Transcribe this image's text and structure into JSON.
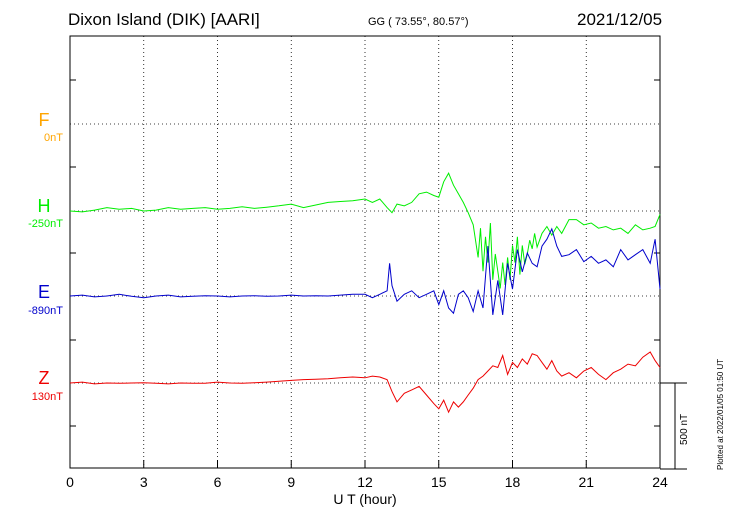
{
  "header": {
    "station": "Dixon Island (DIK)  [AARI]",
    "coords": "GG ( 73.55°,  80.57°)",
    "date": "2021/12/05"
  },
  "scale_label": "500 nT",
  "plotted_note": "Plotted at 2022/01/05 01:50 UT",
  "chart_data": {
    "type": "line",
    "xlabel": "U T (hour)",
    "xlim": [
      0,
      24
    ],
    "x_ticks": [
      "0",
      "3",
      "6",
      "9",
      "12",
      "15",
      "18",
      "21",
      "24"
    ],
    "scale_bar_nT": 500,
    "grid": true,
    "series": [
      {
        "name": "F",
        "baseline": "0nT",
        "color": "#ffa500",
        "x": [],
        "values": []
      },
      {
        "name": "H",
        "baseline": "-250nT",
        "color": "#00ee00",
        "x": [
          0,
          0.5,
          1,
          1.5,
          2,
          2.5,
          3,
          3.5,
          4,
          4.5,
          5,
          5.5,
          6,
          6.5,
          7,
          7.5,
          8,
          8.5,
          9,
          9.5,
          10,
          10.5,
          11,
          11.5,
          12,
          12.3,
          12.6,
          12.9,
          13.1,
          13.3,
          13.6,
          13.9,
          14.2,
          14.5,
          14.8,
          15.0,
          15.2,
          15.4,
          15.6,
          15.8,
          16.0,
          16.2,
          16.4,
          16.6,
          16.7,
          16.8,
          16.9,
          17.0,
          17.1,
          17.2,
          17.3,
          17.4,
          17.5,
          17.6,
          17.7,
          17.8,
          17.9,
          18.0,
          18.1,
          18.2,
          18.3,
          18.4,
          18.5,
          18.6,
          18.7,
          18.8,
          18.9,
          19.0,
          19.2,
          19.4,
          19.6,
          19.8,
          20.0,
          20.3,
          20.6,
          20.9,
          21.2,
          21.5,
          21.8,
          22.1,
          22.4,
          22.7,
          23.0,
          23.3,
          23.6,
          23.8,
          24
        ],
        "values": [
          -250,
          -255,
          -245,
          -230,
          -240,
          -235,
          -250,
          -245,
          -230,
          -240,
          -235,
          -230,
          -240,
          -235,
          -225,
          -235,
          -228,
          -220,
          -210,
          -230,
          -215,
          -200,
          -195,
          -190,
          -180,
          -200,
          -180,
          -230,
          -260,
          -210,
          -220,
          -200,
          -150,
          -140,
          -160,
          -170,
          -80,
          -30,
          -100,
          -150,
          -200,
          -260,
          -330,
          -520,
          -350,
          -600,
          -400,
          -550,
          -320,
          -650,
          -500,
          -600,
          -700,
          -550,
          -680,
          -520,
          -650,
          -450,
          -550,
          -400,
          -620,
          -450,
          -560,
          -500,
          -420,
          -470,
          -380,
          -460,
          -380,
          -340,
          -390,
          -340,
          -380,
          -300,
          -300,
          -330,
          -320,
          -350,
          -340,
          -360,
          -350,
          -380,
          -330,
          -360,
          -350,
          -340,
          -270
        ]
      },
      {
        "name": "E",
        "baseline": "-890nT",
        "color": "#0000cc",
        "x": [
          0,
          0.5,
          1,
          1.5,
          2,
          2.5,
          3,
          3.5,
          4,
          4.5,
          5,
          5.5,
          6,
          6.5,
          7,
          7.5,
          8,
          8.5,
          9,
          9.5,
          10,
          10.5,
          11,
          11.5,
          12,
          12.3,
          12.6,
          12.9,
          13.0,
          13.1,
          13.3,
          13.6,
          13.9,
          14.2,
          14.5,
          14.8,
          15.0,
          15.2,
          15.4,
          15.6,
          15.8,
          16.0,
          16.2,
          16.4,
          16.6,
          16.8,
          17.0,
          17.2,
          17.4,
          17.6,
          17.8,
          18.0,
          18.2,
          18.4,
          18.6,
          18.8,
          19.0,
          19.2,
          19.4,
          19.6,
          19.8,
          20.0,
          20.3,
          20.6,
          20.9,
          21.2,
          21.5,
          21.8,
          22.1,
          22.4,
          22.7,
          23.0,
          23.3,
          23.6,
          23.8,
          24
        ],
        "values": [
          -890,
          -885,
          -895,
          -890,
          -880,
          -892,
          -900,
          -890,
          -885,
          -895,
          -892,
          -888,
          -890,
          -895,
          -890,
          -888,
          -892,
          -890,
          -885,
          -890,
          -888,
          -890,
          -885,
          -880,
          -880,
          -900,
          -880,
          -860,
          -700,
          -830,
          -920,
          -880,
          -860,
          -900,
          -880,
          -860,
          -940,
          -860,
          -960,
          -990,
          -880,
          -860,
          -900,
          -980,
          -860,
          -960,
          -600,
          -1000,
          -800,
          -1000,
          -700,
          -850,
          -620,
          -750,
          -640,
          -700,
          -720,
          -600,
          -560,
          -500,
          -600,
          -660,
          -650,
          -620,
          -690,
          -660,
          -700,
          -680,
          -720,
          -620,
          -680,
          -650,
          -620,
          -700,
          -560,
          -850
        ]
      },
      {
        "name": "Z",
        "baseline": "130nT",
        "color": "#ee0000",
        "x": [
          0,
          0.5,
          1,
          1.5,
          2,
          2.5,
          3,
          3.5,
          4,
          4.5,
          5,
          5.5,
          6,
          6.5,
          7,
          7.5,
          8,
          8.5,
          9,
          9.5,
          10,
          10.5,
          11,
          11.5,
          12,
          12.3,
          12.6,
          12.9,
          13.1,
          13.3,
          13.6,
          13.9,
          14.2,
          14.5,
          14.8,
          15.0,
          15.2,
          15.4,
          15.6,
          15.8,
          16.0,
          16.2,
          16.4,
          16.6,
          16.8,
          17.0,
          17.2,
          17.4,
          17.6,
          17.8,
          18.0,
          18.2,
          18.4,
          18.6,
          18.8,
          19.0,
          19.2,
          19.4,
          19.6,
          19.8,
          20.0,
          20.3,
          20.6,
          20.9,
          21.2,
          21.5,
          21.8,
          22.1,
          22.4,
          22.7,
          23.0,
          23.3,
          23.6,
          23.8,
          24
        ],
        "values": [
          130,
          135,
          125,
          130,
          128,
          130,
          132,
          128,
          125,
          130,
          128,
          128,
          135,
          130,
          128,
          132,
          135,
          140,
          145,
          150,
          152,
          155,
          160,
          165,
          160,
          170,
          165,
          150,
          80,
          20,
          70,
          90,
          110,
          60,
          10,
          -20,
          30,
          -40,
          20,
          -10,
          20,
          60,
          100,
          150,
          170,
          200,
          230,
          220,
          290,
          180,
          250,
          220,
          270,
          240,
          300,
          290,
          250,
          210,
          260,
          200,
          170,
          190,
          160,
          200,
          220,
          180,
          150,
          190,
          210,
          240,
          230,
          280,
          310,
          260,
          220
        ]
      }
    ]
  }
}
